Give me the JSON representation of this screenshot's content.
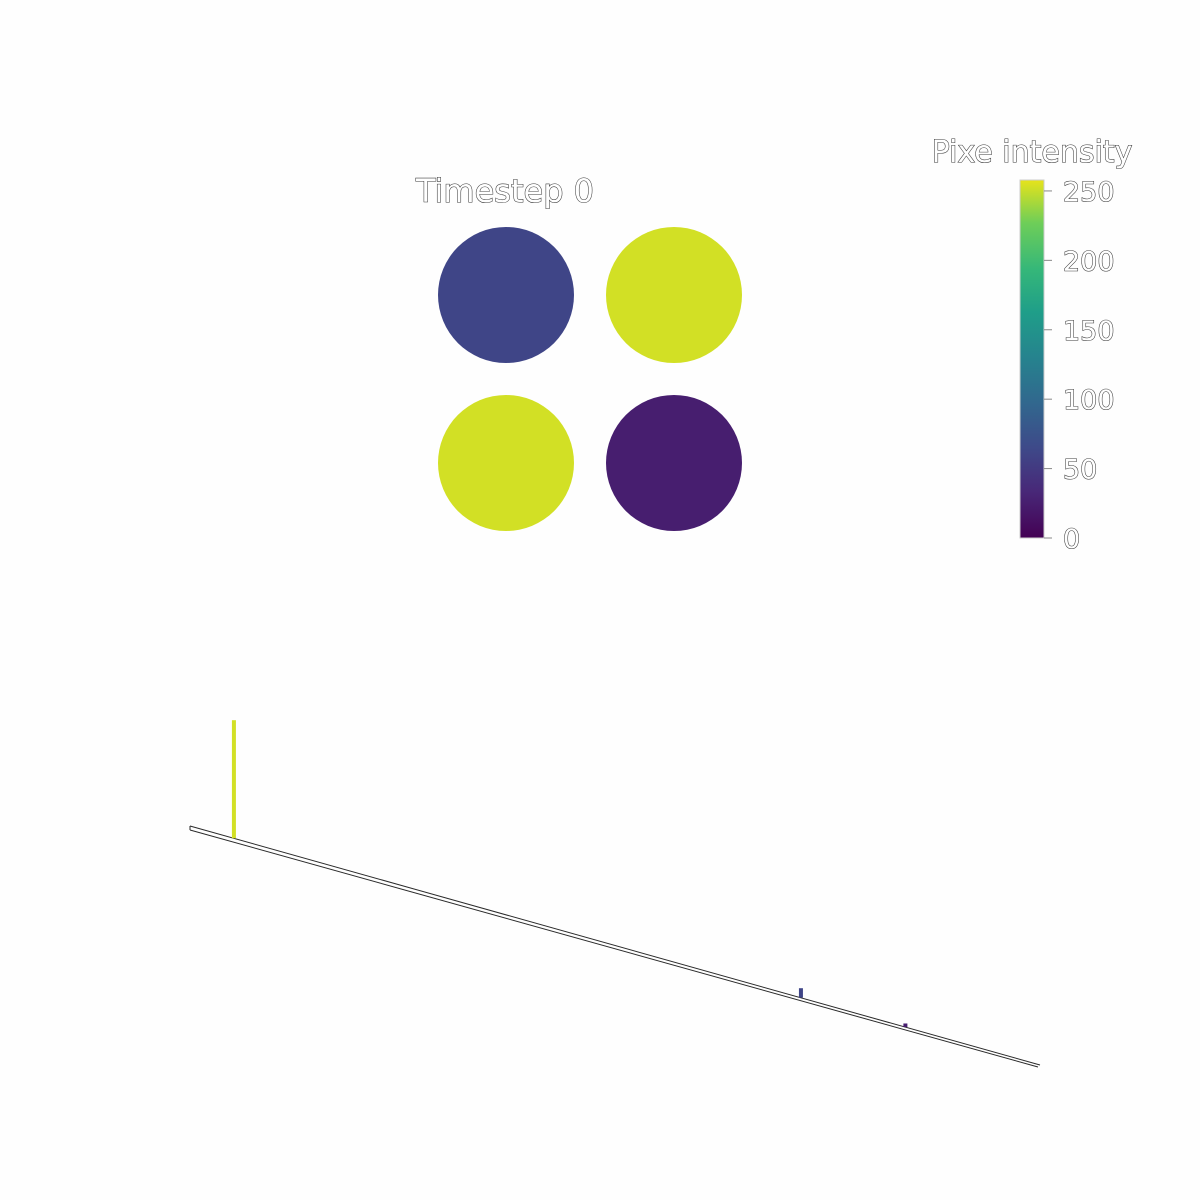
{
  "chart_data": [
    {
      "type": "heatmap",
      "title": "Timestep 0",
      "cells": [
        {
          "row": 0,
          "col": 0,
          "value": 60
        },
        {
          "row": 0,
          "col": 1,
          "value": 250
        },
        {
          "row": 1,
          "col": 0,
          "value": 250
        },
        {
          "row": 1,
          "col": 1,
          "value": 25
        }
      ],
      "colorbar": {
        "title": "Pixe  intensity",
        "ticks": [
          "0",
          "50",
          "100",
          "150",
          "200",
          "250"
        ],
        "tick_values": [
          0,
          50,
          100,
          150,
          200,
          250
        ],
        "range": [
          0,
          255
        ],
        "colormap": "viridis"
      }
    },
    {
      "type": "bar",
      "title": "",
      "xlabel": "",
      "ylabel": "",
      "x": [
        0,
        25,
        60,
        250
      ],
      "values": [
        0,
        0,
        0,
        0
      ],
      "xlim": [
        255,
        0
      ],
      "grid": false,
      "notes": "3D histogram of pixel intensities; bars colored by intensity",
      "bars": [
        {
          "intensity": 250,
          "count": 2
        },
        {
          "intensity": 60,
          "count": 0.16
        },
        {
          "intensity": 25,
          "count": 0.06
        }
      ]
    }
  ],
  "colors": {
    "viridis_0": "#440154",
    "viridis_25": "#481a6c",
    "viridis_60": "#433880",
    "viridis_250": "#e6e31b",
    "background": "#fefefe"
  }
}
